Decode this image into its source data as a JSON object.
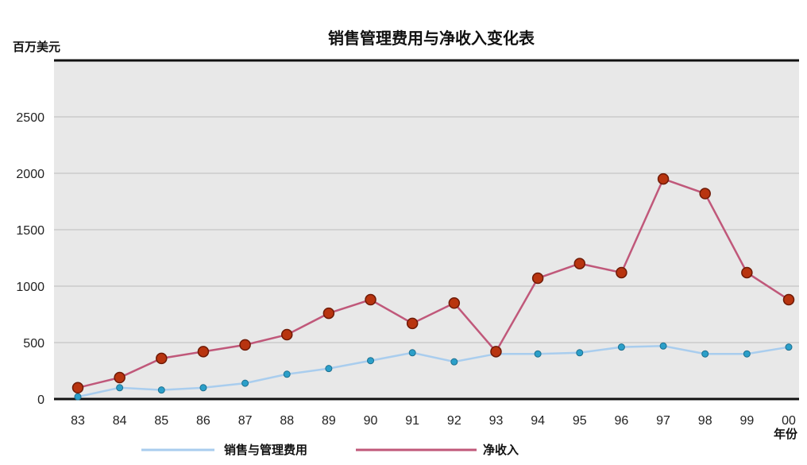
{
  "chart_data": {
    "type": "line",
    "title": "销售管理费用与净收入变化表",
    "ylabel": "百万美元",
    "xlabel": "年份",
    "categories": [
      "83",
      "84",
      "85",
      "86",
      "87",
      "88",
      "89",
      "90",
      "91",
      "92",
      "93",
      "94",
      "95",
      "96",
      "97",
      "98",
      "99",
      "00"
    ],
    "ylim": [
      0,
      3000
    ],
    "yticks": [
      0,
      500,
      1000,
      1500,
      2000,
      2500
    ],
    "grid": true,
    "legend": "bottom",
    "series": [
      {
        "name": "销售与管理费用",
        "color": "#a9cdee",
        "marker_color": "#2b9fc9",
        "values": [
          20,
          100,
          80,
          100,
          140,
          220,
          270,
          340,
          410,
          330,
          400,
          400,
          410,
          460,
          470,
          400,
          400,
          460
        ]
      },
      {
        "name": "净收入",
        "color": "#c0587a",
        "marker_color": "#b8340f",
        "values": [
          100,
          190,
          360,
          420,
          480,
          570,
          760,
          880,
          670,
          850,
          420,
          1070,
          1200,
          1120,
          1950,
          1820,
          1120,
          880
        ]
      }
    ]
  },
  "colors": {
    "plot_bg": "#e8e8e8",
    "grid": "#bdbdbd",
    "axis": "#111111"
  }
}
